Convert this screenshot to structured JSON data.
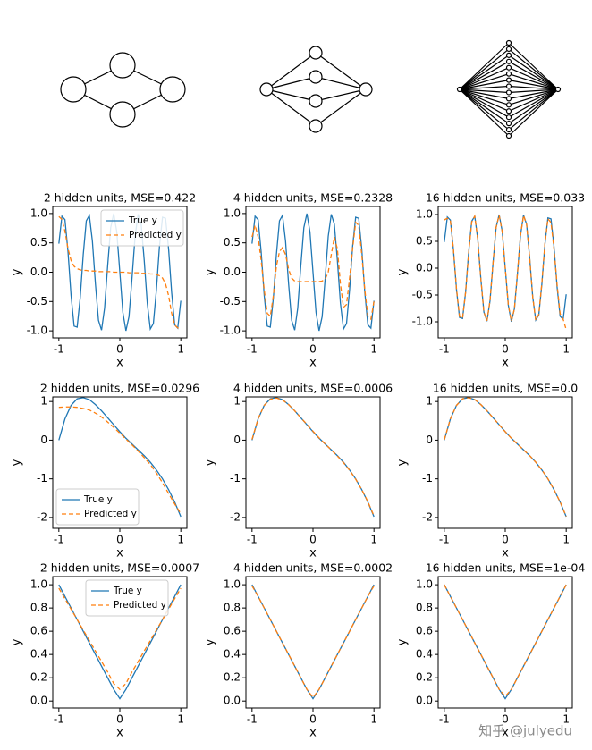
{
  "chart_data": [
    {
      "type": "line",
      "title": "2 hidden units, MSE=0.422",
      "xlabel": "x",
      "ylabel": "y",
      "legend": "upper right",
      "x": [
        -1,
        -0.95,
        -0.9,
        -0.85,
        -0.8,
        -0.75,
        -0.7,
        -0.65,
        -0.6,
        -0.55,
        -0.5,
        -0.45,
        -0.4,
        -0.35,
        -0.3,
        -0.25,
        -0.2,
        -0.15,
        -0.1,
        -0.05,
        0,
        0.05,
        0.1,
        0.15,
        0.2,
        0.25,
        0.3,
        0.35,
        0.4,
        0.45,
        0.5,
        0.55,
        0.6,
        0.65,
        0.7,
        0.75,
        0.8,
        0.85,
        0.9,
        0.95,
        1
      ],
      "xlim": [
        -1.1,
        1.1
      ],
      "xticks": [
        -1,
        0,
        1
      ],
      "ylim": [
        -1.12,
        1.12
      ],
      "yticks": [
        {
          "value": -1,
          "label": "-1.0"
        },
        -0.5,
        {
          "value": 0,
          "label": "0.0"
        },
        0.5,
        {
          "value": 1,
          "label": "1.0"
        }
      ],
      "series": [
        {
          "name": "True y",
          "color": "#1f77b4",
          "linestyle": "solid",
          "values": [
            0.487,
            0.954,
            0.897,
            0.347,
            -0.395,
            -0.919,
            -0.937,
            -0.44,
            0.3,
            0.875,
            0.968,
            0.529,
            -0.202,
            -0.821,
            -0.988,
            -0.612,
            0.101,
            0.759,
            0.999,
            0.689,
            0,
            -0.689,
            -0.999,
            -0.759,
            -0.101,
            0.612,
            0.988,
            0.821,
            0.202,
            -0.529,
            -0.968,
            -0.875,
            -0.3,
            0.44,
            0.937,
            0.919,
            0.395,
            -0.347,
            -0.897,
            -0.954,
            -0.487
          ]
        },
        {
          "name": "Predicted y",
          "color": "#ff7f0e",
          "linestyle": "dashed",
          "values": [
            0.95,
            0.9,
            0.7,
            0.4,
            0.2,
            0.1,
            0.06,
            0.04,
            0.03,
            0.03,
            0.02,
            0.02,
            0.02,
            0.01,
            0.01,
            0.01,
            0.01,
            0.01,
            0,
            0,
            0,
            0,
            0,
            -0.01,
            -0.01,
            -0.01,
            -0.01,
            -0.02,
            -0.02,
            -0.02,
            -0.03,
            -0.03,
            -0.04,
            -0.06,
            -0.1,
            -0.2,
            -0.4,
            -0.7,
            -0.9,
            -0.95,
            -0.95
          ]
        }
      ]
    },
    {
      "type": "line",
      "title": "4 hidden units, MSE=0.2328",
      "xlabel": "x",
      "ylabel": "y",
      "x": [
        -1,
        -0.95,
        -0.9,
        -0.85,
        -0.8,
        -0.75,
        -0.7,
        -0.65,
        -0.6,
        -0.55,
        -0.5,
        -0.45,
        -0.4,
        -0.35,
        -0.3,
        -0.25,
        -0.2,
        -0.15,
        -0.1,
        -0.05,
        0,
        0.05,
        0.1,
        0.15,
        0.2,
        0.25,
        0.3,
        0.35,
        0.4,
        0.45,
        0.5,
        0.55,
        0.6,
        0.65,
        0.7,
        0.75,
        0.8,
        0.85,
        0.9,
        0.95,
        1
      ],
      "xlim": [
        -1.1,
        1.1
      ],
      "xticks": [
        -1,
        0,
        1
      ],
      "ylim": [
        -1.12,
        1.12
      ],
      "yticks": [
        {
          "value": -1,
          "label": "-1.0"
        },
        -0.5,
        {
          "value": 0,
          "label": "0.0"
        },
        0.5,
        {
          "value": 1,
          "label": "1.0"
        }
      ],
      "series": [
        {
          "color": "#1f77b4",
          "linestyle": "solid",
          "values": [
            0.487,
            0.954,
            0.897,
            0.347,
            -0.395,
            -0.919,
            -0.937,
            -0.44,
            0.3,
            0.875,
            0.968,
            0.529,
            -0.202,
            -0.821,
            -0.988,
            -0.612,
            0.101,
            0.759,
            0.999,
            0.689,
            0,
            -0.689,
            -0.999,
            -0.759,
            -0.101,
            0.612,
            0.988,
            0.821,
            0.202,
            -0.529,
            -0.968,
            -0.875,
            -0.3,
            0.44,
            0.937,
            0.919,
            0.395,
            -0.347,
            -0.897,
            -0.954,
            -0.487
          ]
        },
        {
          "color": "#ff7f0e",
          "linestyle": "dashed",
          "values": [
            0.6,
            0.8,
            0.6,
            0.2,
            -0.3,
            -0.7,
            -0.75,
            -0.4,
            0.1,
            0.35,
            0.42,
            0.3,
            0.05,
            -0.1,
            -0.15,
            -0.16,
            -0.16,
            -0.16,
            -0.16,
            -0.16,
            -0.16,
            -0.16,
            -0.16,
            -0.15,
            -0.12,
            0,
            0.3,
            0.6,
            0.4,
            -0.2,
            -0.6,
            -0.55,
            -0.1,
            0.4,
            0.85,
            0.8,
            0.3,
            -0.3,
            -0.75,
            -0.8,
            -0.5
          ]
        }
      ]
    },
    {
      "type": "line",
      "title": "16 hidden units, MSE=0.033",
      "xlabel": "x",
      "ylabel": "y",
      "x": [
        -1,
        -0.95,
        -0.9,
        -0.85,
        -0.8,
        -0.75,
        -0.7,
        -0.65,
        -0.6,
        -0.55,
        -0.5,
        -0.45,
        -0.4,
        -0.35,
        -0.3,
        -0.25,
        -0.2,
        -0.15,
        -0.1,
        -0.05,
        0,
        0.05,
        0.1,
        0.15,
        0.2,
        0.25,
        0.3,
        0.35,
        0.4,
        0.45,
        0.5,
        0.55,
        0.6,
        0.65,
        0.7,
        0.75,
        0.8,
        0.85,
        0.9,
        0.95,
        1
      ],
      "xlim": [
        -1.1,
        1.1
      ],
      "xticks": [
        -1,
        0,
        1
      ],
      "ylim": [
        -1.3,
        1.15
      ],
      "yticks": [
        {
          "value": -1,
          "label": "-1.0"
        },
        -0.5,
        {
          "value": 0,
          "label": "0.0"
        },
        0.5,
        {
          "value": 1,
          "label": "1.0"
        }
      ],
      "series": [
        {
          "color": "#1f77b4",
          "linestyle": "solid",
          "values": [
            0.487,
            0.954,
            0.897,
            0.347,
            -0.395,
            -0.919,
            -0.937,
            -0.44,
            0.3,
            0.875,
            0.968,
            0.529,
            -0.202,
            -0.821,
            -0.988,
            -0.612,
            0.101,
            0.759,
            0.999,
            0.689,
            0,
            -0.689,
            -0.999,
            -0.759,
            -0.101,
            0.612,
            0.988,
            0.821,
            0.202,
            -0.529,
            -0.968,
            -0.875,
            -0.3,
            0.44,
            0.937,
            0.919,
            0.395,
            -0.347,
            -0.897,
            -0.954,
            -0.487
          ]
        },
        {
          "color": "#ff7f0e",
          "linestyle": "dashed",
          "values": [
            0.9,
            0.93,
            0.88,
            0.36,
            -0.38,
            -0.9,
            -0.93,
            -0.45,
            0.28,
            0.86,
            0.97,
            0.53,
            -0.2,
            -0.82,
            -0.98,
            -0.61,
            0.1,
            0.76,
            0.99,
            0.68,
            0,
            -0.68,
            -0.99,
            -0.76,
            -0.1,
            0.61,
            0.98,
            0.82,
            0.2,
            -0.53,
            -0.97,
            -0.86,
            -0.28,
            0.45,
            0.92,
            0.85,
            0.35,
            -0.3,
            -0.85,
            -0.95,
            -1.15
          ]
        }
      ]
    },
    {
      "type": "line",
      "title": "2 hidden units, MSE=0.0296",
      "xlabel": "x",
      "ylabel": "y",
      "legend": "lower left",
      "x": [
        -1,
        -0.9,
        -0.8,
        -0.7,
        -0.6,
        -0.5,
        -0.4,
        -0.3,
        -0.2,
        -0.1,
        0,
        0.1,
        0.2,
        0.3,
        0.4,
        0.5,
        0.6,
        0.7,
        0.8,
        0.9,
        1
      ],
      "xlim": [
        -1.1,
        1.1
      ],
      "xticks": [
        -1,
        0,
        1
      ],
      "ylim": [
        -2.28,
        1.12
      ],
      "yticks": [
        -2,
        -1,
        0,
        1
      ],
      "series": [
        {
          "name": "True y",
          "color": "#1f77b4",
          "linestyle": "solid",
          "values": [
            0,
            0.55,
            0.9,
            1.07,
            1.1,
            1.05,
            0.92,
            0.76,
            0.58,
            0.4,
            0.22,
            0.05,
            -0.1,
            -0.25,
            -0.4,
            -0.57,
            -0.77,
            -1,
            -1.28,
            -1.6,
            -1.98
          ]
        },
        {
          "name": "Predicted y",
          "color": "#ff7f0e",
          "linestyle": "dashed",
          "values": [
            0.85,
            0.86,
            0.86,
            0.85,
            0.82,
            0.78,
            0.7,
            0.6,
            0.47,
            0.33,
            0.18,
            0.03,
            -0.12,
            -0.28,
            -0.45,
            -0.63,
            -0.85,
            -1.1,
            -1.38,
            -1.65,
            -1.9
          ]
        }
      ]
    },
    {
      "type": "line",
      "title": "4 hidden units, MSE=0.0006",
      "xlabel": "x",
      "ylabel": "y",
      "x": [
        -1,
        -0.9,
        -0.8,
        -0.7,
        -0.6,
        -0.5,
        -0.4,
        -0.3,
        -0.2,
        -0.1,
        0,
        0.1,
        0.2,
        0.3,
        0.4,
        0.5,
        0.6,
        0.7,
        0.8,
        0.9,
        1
      ],
      "xlim": [
        -1.1,
        1.1
      ],
      "xticks": [
        -1,
        0,
        1
      ],
      "ylim": [
        -2.28,
        1.12
      ],
      "yticks": [
        -2,
        -1,
        0,
        1
      ],
      "series": [
        {
          "color": "#1f77b4",
          "linestyle": "solid",
          "values": [
            0,
            0.55,
            0.9,
            1.07,
            1.1,
            1.05,
            0.92,
            0.76,
            0.58,
            0.4,
            0.22,
            0.05,
            -0.1,
            -0.25,
            -0.4,
            -0.57,
            -0.77,
            -1,
            -1.28,
            -1.6,
            -1.98
          ]
        },
        {
          "color": "#ff7f0e",
          "linestyle": "dashed",
          "values": [
            0.02,
            0.56,
            0.9,
            1.06,
            1.09,
            1.04,
            0.92,
            0.76,
            0.58,
            0.41,
            0.23,
            0.06,
            -0.1,
            -0.25,
            -0.41,
            -0.58,
            -0.78,
            -1.01,
            -1.28,
            -1.59,
            -1.96
          ]
        }
      ]
    },
    {
      "type": "line",
      "title": "16 hidden units, MSE=0.0",
      "xlabel": "x",
      "ylabel": "y",
      "x": [
        -1,
        -0.9,
        -0.8,
        -0.7,
        -0.6,
        -0.5,
        -0.4,
        -0.3,
        -0.2,
        -0.1,
        0,
        0.1,
        0.2,
        0.3,
        0.4,
        0.5,
        0.6,
        0.7,
        0.8,
        0.9,
        1
      ],
      "xlim": [
        -1.1,
        1.1
      ],
      "xticks": [
        -1,
        0,
        1
      ],
      "ylim": [
        -2.28,
        1.12
      ],
      "yticks": [
        -2,
        -1,
        0,
        1
      ],
      "series": [
        {
          "color": "#1f77b4",
          "linestyle": "solid",
          "values": [
            0,
            0.55,
            0.9,
            1.07,
            1.1,
            1.05,
            0.92,
            0.76,
            0.58,
            0.4,
            0.22,
            0.05,
            -0.1,
            -0.25,
            -0.4,
            -0.57,
            -0.77,
            -1,
            -1.28,
            -1.6,
            -1.98
          ]
        },
        {
          "color": "#ff7f0e",
          "linestyle": "dashed",
          "values": [
            0.01,
            0.55,
            0.9,
            1.07,
            1.1,
            1.05,
            0.92,
            0.76,
            0.58,
            0.4,
            0.22,
            0.05,
            -0.1,
            -0.25,
            -0.4,
            -0.57,
            -0.77,
            -1,
            -1.28,
            -1.6,
            -1.97
          ]
        }
      ]
    },
    {
      "type": "line",
      "title": "2 hidden units, MSE=0.0007",
      "xlabel": "x",
      "ylabel": "y",
      "legend": "upper center",
      "x": [
        -1,
        -0.9,
        -0.8,
        -0.7,
        -0.6,
        -0.5,
        -0.4,
        -0.3,
        -0.2,
        -0.1,
        0,
        0.1,
        0.2,
        0.3,
        0.4,
        0.5,
        0.6,
        0.7,
        0.8,
        0.9,
        1
      ],
      "xlim": [
        -1.1,
        1.1
      ],
      "xticks": [
        -1,
        0,
        1
      ],
      "ylim": [
        -0.06,
        1.07
      ],
      "yticks": [
        {
          "value": 0,
          "label": "0.0"
        },
        0.2,
        0.4,
        0.6,
        0.8,
        {
          "value": 1,
          "label": "1.0"
        }
      ],
      "series": [
        {
          "name": "True y",
          "color": "#1f77b4",
          "linestyle": "solid",
          "values": [
            1,
            0.9,
            0.8,
            0.7,
            0.6,
            0.5,
            0.4,
            0.3,
            0.2,
            0.1,
            0.02,
            0.1,
            0.2,
            0.3,
            0.4,
            0.5,
            0.6,
            0.7,
            0.8,
            0.9,
            1
          ]
        },
        {
          "name": "Predicted y",
          "color": "#ff7f0e",
          "linestyle": "dashed",
          "values": [
            0.97,
            0.88,
            0.79,
            0.7,
            0.61,
            0.52,
            0.43,
            0.34,
            0.25,
            0.15,
            0.1,
            0.15,
            0.25,
            0.34,
            0.43,
            0.52,
            0.61,
            0.7,
            0.79,
            0.88,
            0.97
          ]
        }
      ]
    },
    {
      "type": "line",
      "title": "4 hidden units, MSE=0.0002",
      "xlabel": "x",
      "ylabel": "y",
      "x": [
        -1,
        -0.9,
        -0.8,
        -0.7,
        -0.6,
        -0.5,
        -0.4,
        -0.3,
        -0.2,
        -0.1,
        0,
        0.1,
        0.2,
        0.3,
        0.4,
        0.5,
        0.6,
        0.7,
        0.8,
        0.9,
        1
      ],
      "xlim": [
        -1.1,
        1.1
      ],
      "xticks": [
        -1,
        0,
        1
      ],
      "ylim": [
        -0.06,
        1.07
      ],
      "yticks": [
        {
          "value": 0,
          "label": "0.0"
        },
        0.2,
        0.4,
        0.6,
        0.8,
        {
          "value": 1,
          "label": "1.0"
        }
      ],
      "series": [
        {
          "color": "#1f77b4",
          "linestyle": "solid",
          "values": [
            1,
            0.9,
            0.8,
            0.7,
            0.6,
            0.5,
            0.4,
            0.3,
            0.2,
            0.1,
            0.02,
            0.1,
            0.2,
            0.3,
            0.4,
            0.5,
            0.6,
            0.7,
            0.8,
            0.9,
            1
          ]
        },
        {
          "color": "#ff7f0e",
          "linestyle": "dashed",
          "values": [
            0.99,
            0.9,
            0.8,
            0.7,
            0.6,
            0.5,
            0.4,
            0.3,
            0.2,
            0.1,
            0.03,
            0.1,
            0.2,
            0.3,
            0.4,
            0.5,
            0.6,
            0.7,
            0.8,
            0.9,
            0.99
          ]
        }
      ]
    },
    {
      "type": "line",
      "title": "16 hidden units, MSE=1e-04",
      "xlabel": "x",
      "ylabel": "y",
      "x": [
        -1,
        -0.9,
        -0.8,
        -0.7,
        -0.6,
        -0.5,
        -0.4,
        -0.3,
        -0.2,
        -0.1,
        0,
        0.1,
        0.2,
        0.3,
        0.4,
        0.5,
        0.6,
        0.7,
        0.8,
        0.9,
        1
      ],
      "xlim": [
        -1.1,
        1.1
      ],
      "xticks": [
        -1,
        0,
        1
      ],
      "ylim": [
        -0.06,
        1.07
      ],
      "yticks": [
        {
          "value": 0,
          "label": "0.0"
        },
        0.2,
        0.4,
        0.6,
        0.8,
        {
          "value": 1,
          "label": "1.0"
        }
      ],
      "series": [
        {
          "color": "#1f77b4",
          "linestyle": "solid",
          "values": [
            1,
            0.9,
            0.8,
            0.7,
            0.6,
            0.5,
            0.4,
            0.3,
            0.2,
            0.1,
            0.02,
            0.1,
            0.2,
            0.3,
            0.4,
            0.5,
            0.6,
            0.7,
            0.8,
            0.9,
            1
          ]
        },
        {
          "color": "#ff7f0e",
          "linestyle": "dashed",
          "values": [
            1,
            0.9,
            0.8,
            0.7,
            0.6,
            0.5,
            0.4,
            0.3,
            0.2,
            0.1,
            0.04,
            0.1,
            0.2,
            0.3,
            0.4,
            0.5,
            0.6,
            0.7,
            0.8,
            0.9,
            1
          ]
        }
      ]
    }
  ],
  "watermark": "知乎 @julyedu"
}
